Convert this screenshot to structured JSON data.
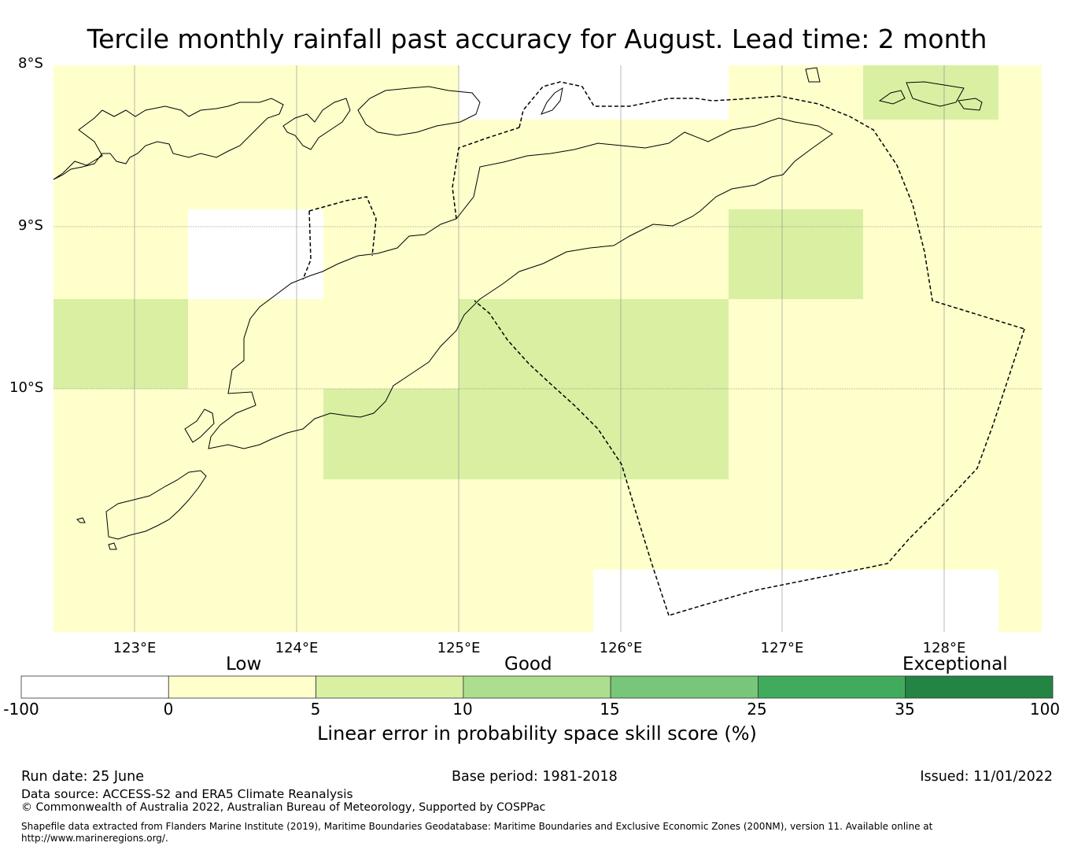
{
  "title": "Tercile monthly rainfall past accuracy for August. Lead time: 2 month",
  "map": {
    "lat_labels": [
      "8°S",
      "9°S",
      "10°S"
    ],
    "lon_labels": [
      "123°E",
      "124°E",
      "125°E",
      "126°E",
      "127°E",
      "128°E"
    ],
    "colors": {
      "land_outline": "#000000",
      "gridline": "#888888",
      "eez_boundary": "#000000"
    }
  },
  "colorbar": {
    "categories": [
      "Low",
      "Good",
      "Exceptional"
    ],
    "ticks": [
      "-100",
      "0",
      "5",
      "10",
      "15",
      "25",
      "35",
      "100"
    ],
    "colors": [
      "#ffffff",
      "#ffffcc",
      "#d9f0a3",
      "#addd8e",
      "#78c679",
      "#41ab5d",
      "#238443"
    ],
    "label": "Linear error in probability space skill score (%)"
  },
  "chart_data": {
    "type": "heatmap",
    "title": "Tercile monthly rainfall past accuracy for August. Lead time: 2 month",
    "xlabel": "",
    "ylabel": "",
    "colorbar_label": "Linear error in probability space skill score (%)",
    "colorbar_bounds": [
      -100,
      0,
      5,
      10,
      15,
      25,
      35,
      100
    ],
    "cells": [
      {
        "lon": [
          122.5,
          125.0
        ],
        "lat": [
          -8.0,
          -8.33
        ],
        "category": "0 to 5"
      },
      {
        "lon": [
          125.0,
          126.67
        ],
        "lat": [
          -8.0,
          -8.33
        ],
        "category": "-100 to 0"
      },
      {
        "lon": [
          126.67,
          127.5
        ],
        "lat": [
          -8.0,
          -8.33
        ],
        "category": "0 to 5"
      },
      {
        "lon": [
          127.5,
          128.33
        ],
        "lat": [
          -8.0,
          -8.33
        ],
        "category": "5 to 10"
      },
      {
        "lon": [
          128.33,
          128.6
        ],
        "lat": [
          -8.0,
          -8.33
        ],
        "category": "0 to 5"
      },
      {
        "lon": [
          122.5,
          128.6
        ],
        "lat": [
          -8.33,
          -8.89
        ],
        "category": "0 to 5"
      },
      {
        "lon": [
          123.33,
          124.17
        ],
        "lat": [
          -8.89,
          -9.44
        ],
        "category": "-100 to 0"
      },
      {
        "lon": [
          126.67,
          127.5
        ],
        "lat": [
          -8.89,
          -9.44
        ],
        "category": "5 to 10"
      },
      {
        "lon": [
          122.5,
          123.33
        ],
        "lat": [
          -9.44,
          -10.0
        ],
        "category": "5 to 10"
      },
      {
        "lon": [
          125.0,
          126.67
        ],
        "lat": [
          -9.44,
          -10.56
        ],
        "category": "5 to 10"
      },
      {
        "lon": [
          124.17,
          125.0
        ],
        "lat": [
          -10.0,
          -10.56
        ],
        "category": "5 to 10"
      },
      {
        "lon": [
          125.83,
          128.33
        ],
        "lat": [
          -11.11,
          -11.5
        ],
        "category": "-100 to 0"
      },
      {
        "lon": [
          122.5,
          128.6
        ],
        "lat": [
          -8.0,
          -11.5
        ],
        "category": "0 to 5 (remaining)"
      }
    ]
  },
  "footer": {
    "run_date": "Run date: 25 June",
    "base_period": "Base period: 1981-2018",
    "issued": "Issued: 11/01/2022",
    "data_source": "Data source: ACCESS-S2 and ERA5 Climate Reanalysis",
    "copyright": "© Commonwealth of Australia 2022, Australian Bureau of Meteorology, Supported by COSPPac",
    "shapefile_line1": "Shapefile data extracted from Flanders Marine Institute (2019), Maritime Boundaries Geodatabase: Maritime Boundaries and Exclusive Economic Zones (200NM), version 11. Available online at",
    "shapefile_line2": "http://www.marineregions.org/."
  }
}
